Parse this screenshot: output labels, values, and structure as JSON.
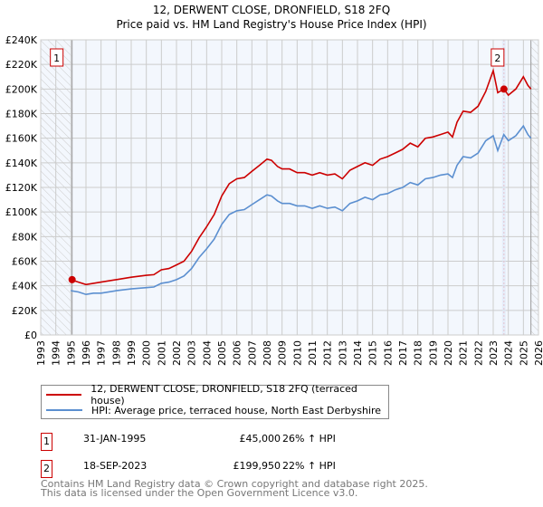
{
  "chart_data": {
    "type": "line",
    "title": "12, DERWENT CLOSE, DRONFIELD, S18 2FQ",
    "subtitle": "Price paid vs. HM Land Registry's House Price Index (HPI)",
    "xlim": [
      1993,
      2026
    ],
    "ylim": [
      0,
      240000
    ],
    "x_ticks": [
      "1993",
      "1994",
      "1995",
      "1996",
      "1997",
      "1998",
      "1999",
      "2000",
      "2001",
      "2002",
      "2003",
      "2004",
      "2005",
      "2006",
      "2007",
      "2008",
      "2009",
      "2010",
      "2011",
      "2012",
      "2013",
      "2014",
      "2015",
      "2016",
      "2017",
      "2018",
      "2019",
      "2020",
      "2021",
      "2022",
      "2023",
      "2024",
      "2025",
      "2026"
    ],
    "y_ticks": [
      "£0",
      "£20K",
      "£40K",
      "£60K",
      "£80K",
      "£100K",
      "£120K",
      "£140K",
      "£160K",
      "£180K",
      "£200K",
      "£220K",
      "£240K"
    ],
    "grid": true,
    "x": [
      1995.0,
      1995.5,
      1996,
      1996.5,
      1997,
      1998,
      1999,
      2000,
      2000.5,
      2001,
      2001.5,
      2002,
      2002.5,
      2003,
      2003.5,
      2004,
      2004.5,
      2005,
      2005.5,
      2006,
      2006.5,
      2007,
      2007.5,
      2008,
      2008.3,
      2008.7,
      2009,
      2009.5,
      2010,
      2010.5,
      2011,
      2011.5,
      2012,
      2012.5,
      2013,
      2013.5,
      2014,
      2014.5,
      2015,
      2015.5,
      2016,
      2016.5,
      2017,
      2017.5,
      2018,
      2018.5,
      2019,
      2019.5,
      2020,
      2020.3,
      2020.6,
      2021,
      2021.5,
      2022,
      2022.5,
      2023,
      2023.3,
      2023.7,
      2024,
      2024.5,
      2025,
      2025.3,
      2025.5
    ],
    "series": [
      {
        "name": "12, DERWENT CLOSE, DRONFIELD, S18 2FQ (terraced house)",
        "color": "#cc0000",
        "unit": "K",
        "values": [
          45,
          43,
          41,
          42,
          43,
          45,
          47,
          48.5,
          49,
          53,
          54,
          57,
          60,
          68,
          79,
          88,
          98,
          113,
          123,
          127,
          128,
          133,
          138,
          143,
          142,
          137,
          135,
          135,
          132,
          132,
          130,
          132,
          130,
          131,
          127,
          134,
          137,
          140,
          138,
          143,
          145,
          148,
          151,
          156,
          153,
          160,
          161,
          163,
          165,
          161,
          173,
          182,
          181,
          186,
          198,
          215,
          197,
          200,
          195,
          200,
          210,
          203,
          200
        ]
      },
      {
        "name": "HPI: Average price, terraced house, North East Derbyshire",
        "color": "#5b8fd0",
        "unit": "K",
        "values": [
          36,
          35,
          33,
          34,
          34,
          36,
          37.5,
          38.5,
          39,
          42,
          43,
          45,
          48,
          54,
          63,
          70,
          78,
          90,
          98,
          101,
          102,
          106,
          110,
          114,
          113,
          109,
          107,
          107,
          105,
          105,
          103,
          105,
          103,
          104,
          101,
          107,
          109,
          112,
          110,
          114,
          115,
          118,
          120,
          124,
          122,
          127,
          128,
          130,
          131,
          128,
          138,
          145,
          144,
          148,
          158,
          162,
          150,
          163,
          158,
          162,
          170,
          163,
          160
        ]
      }
    ],
    "sales": [
      {
        "id": "1",
        "x": 1995.08,
        "price": 45000,
        "date": "31-JAN-1995",
        "price_label": "£45,000",
        "hpi": "26% ↑ HPI"
      },
      {
        "id": "2",
        "x": 2023.71,
        "price": 199950,
        "date": "18-SEP-2023",
        "price_label": "£199,950",
        "hpi": "22% ↑ HPI"
      }
    ],
    "data_end": 2025.5,
    "legend_placement": "below"
  },
  "footer": {
    "line1": "Contains HM Land Registry data © Crown copyright and database right 2025.",
    "line2": "This data is licensed under the Open Government Licence v3.0."
  }
}
